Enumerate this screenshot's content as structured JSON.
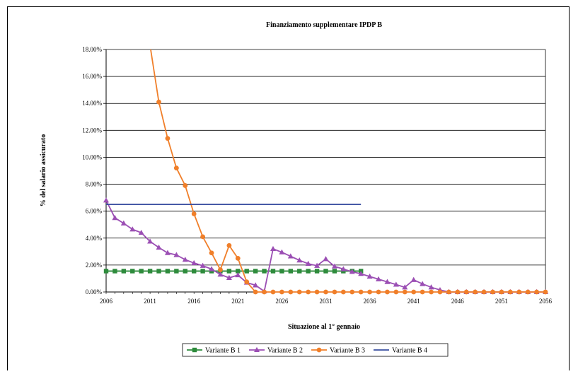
{
  "chart_data": {
    "type": "line",
    "title": "Finanziamento supplementare IPDP B",
    "xlabel": "Situazione al 1° gennaio",
    "ylabel": "% del salario assicurato",
    "xlim": [
      2006,
      2056
    ],
    "ylim": [
      0,
      0.18
    ],
    "x_ticks": [
      "2006",
      "2011",
      "2016",
      "2021",
      "2026",
      "2031",
      "2036",
      "2041",
      "2046",
      "2051",
      "2056"
    ],
    "y_ticks": [
      "0.00%",
      "2.00%",
      "4.00%",
      "6.00%",
      "8.00%",
      "10.00%",
      "12.00%",
      "14.00%",
      "16.00%",
      "18.00%"
    ],
    "grid": "horizontal",
    "legend_position": "bottom",
    "series": [
      {
        "name": "Variante B 1",
        "color": "#2e8b3c",
        "marker": "square",
        "x": [
          2006,
          2007,
          2008,
          2009,
          2010,
          2011,
          2012,
          2013,
          2014,
          2015,
          2016,
          2017,
          2018,
          2019,
          2020,
          2021,
          2022,
          2023,
          2024,
          2025,
          2026,
          2027,
          2028,
          2029,
          2030,
          2031,
          2032,
          2033,
          2034,
          2035
        ],
        "y": [
          0.0155,
          0.0155,
          0.0155,
          0.0155,
          0.0155,
          0.0155,
          0.0155,
          0.0155,
          0.0155,
          0.0155,
          0.0155,
          0.0155,
          0.0155,
          0.0155,
          0.0155,
          0.0155,
          0.0155,
          0.0155,
          0.0155,
          0.0155,
          0.0155,
          0.0155,
          0.0155,
          0.0155,
          0.0155,
          0.0155,
          0.0155,
          0.0155,
          0.0155,
          0.0155
        ]
      },
      {
        "name": "Variante B 2",
        "color": "#9b4fb4",
        "marker": "triangle",
        "x": [
          2006,
          2007,
          2008,
          2009,
          2010,
          2011,
          2012,
          2013,
          2014,
          2015,
          2016,
          2017,
          2018,
          2019,
          2020,
          2021,
          2022,
          2023,
          2024,
          2025,
          2026,
          2027,
          2028,
          2029,
          2030,
          2031,
          2032,
          2033,
          2034,
          2035,
          2036,
          2037,
          2038,
          2039,
          2040,
          2041,
          2042,
          2043,
          2044,
          2045,
          2046,
          2047,
          2048,
          2049,
          2050,
          2051,
          2052,
          2053,
          2054,
          2055,
          2056
        ],
        "y": [
          0.068,
          0.055,
          0.051,
          0.0465,
          0.044,
          0.0375,
          0.033,
          0.029,
          0.0275,
          0.024,
          0.0215,
          0.0195,
          0.017,
          0.013,
          0.0105,
          0.0125,
          0.007,
          0.005,
          0.0005,
          0.032,
          0.0295,
          0.0265,
          0.0235,
          0.021,
          0.0195,
          0.0245,
          0.019,
          0.017,
          0.015,
          0.0135,
          0.0115,
          0.0095,
          0.0075,
          0.0055,
          0.0035,
          0.009,
          0.006,
          0.0035,
          0.0015,
          0.0,
          0.0,
          0.0,
          0.0,
          0.0,
          0.0,
          0.0,
          0.0,
          0.0,
          0.0,
          0.0,
          0.0
        ]
      },
      {
        "name": "Variante B 3",
        "color": "#f07f2a",
        "marker": "circle",
        "x": [
          2011,
          2012,
          2013,
          2014,
          2015,
          2016,
          2017,
          2018,
          2019,
          2020,
          2021,
          2022,
          2023,
          2024,
          2025,
          2026,
          2027,
          2028,
          2029,
          2030,
          2031,
          2032,
          2033,
          2034,
          2035,
          2036,
          2037,
          2038,
          2039,
          2040,
          2041,
          2042,
          2043,
          2044,
          2045,
          2046,
          2047,
          2048,
          2049,
          2050,
          2051,
          2052,
          2053,
          2054,
          2055,
          2056
        ],
        "y": [
          0.183,
          0.141,
          0.114,
          0.092,
          0.079,
          0.058,
          0.041,
          0.029,
          0.0165,
          0.0345,
          0.025,
          0.0075,
          0.0,
          0.0,
          0.0,
          0.0,
          0.0,
          0.0,
          0.0,
          0.0,
          0.0,
          0.0,
          0.0,
          0.0,
          0.0,
          0.0,
          0.0,
          0.0,
          0.0,
          0.0,
          0.0,
          0.0,
          0.0,
          0.0,
          0.0,
          0.0,
          0.0,
          0.0,
          0.0,
          0.0,
          0.0,
          0.0,
          0.0,
          0.0,
          0.0,
          0.0
        ],
        "markers_from": 2012
      },
      {
        "name": "Variante B 4",
        "color": "#3a4fa0",
        "marker": "none",
        "x": [
          2006,
          2035
        ],
        "y": [
          0.065,
          0.065
        ]
      }
    ]
  }
}
